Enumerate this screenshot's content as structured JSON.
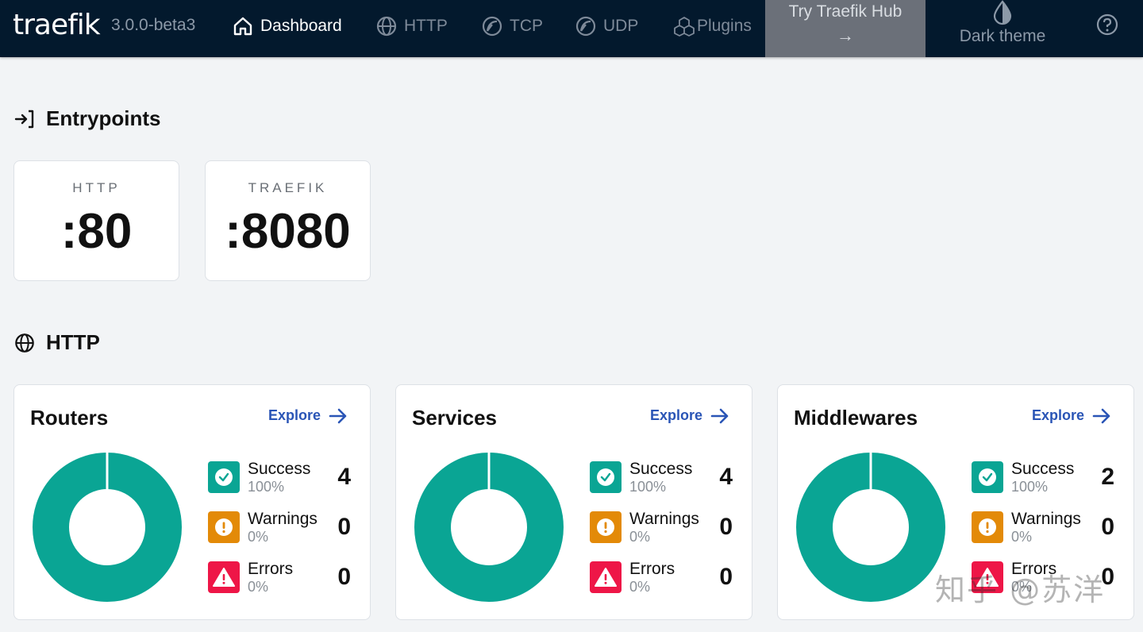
{
  "nav": {
    "logo": "traefik",
    "version": "3.0.0-beta3",
    "items": [
      {
        "label": "Dashboard",
        "icon": "home-icon",
        "active": true
      },
      {
        "label": "HTTP",
        "icon": "globe-icon",
        "active": false
      },
      {
        "label": "TCP",
        "icon": "tcp-icon",
        "active": false
      },
      {
        "label": "UDP",
        "icon": "udp-icon",
        "active": false
      },
      {
        "label": "Plugins",
        "icon": "plugins-icon",
        "active": false
      }
    ],
    "hub_button": {
      "line1": "Try Traefik Hub",
      "line2": "→"
    },
    "dark_theme": "Dark theme",
    "help_icon": "help-icon"
  },
  "entrypoints": {
    "title": "Entrypoints",
    "cards": [
      {
        "name": "HTTP",
        "port": ":80"
      },
      {
        "name": "TRAEFIK",
        "port": ":8080"
      }
    ]
  },
  "http": {
    "title": "HTTP",
    "explore_label": "Explore",
    "cards": [
      {
        "title": "Routers",
        "legend": [
          {
            "label": "Success",
            "pct": "100%",
            "count": "4"
          },
          {
            "label": "Warnings",
            "pct": "0%",
            "count": "0"
          },
          {
            "label": "Errors",
            "pct": "0%",
            "count": "0"
          }
        ]
      },
      {
        "title": "Services",
        "legend": [
          {
            "label": "Success",
            "pct": "100%",
            "count": "4"
          },
          {
            "label": "Warnings",
            "pct": "0%",
            "count": "0"
          },
          {
            "label": "Errors",
            "pct": "0%",
            "count": "0"
          }
        ]
      },
      {
        "title": "Middlewares",
        "legend": [
          {
            "label": "Success",
            "pct": "100%",
            "count": "2"
          },
          {
            "label": "Warnings",
            "pct": "0%",
            "count": "0"
          },
          {
            "label": "Errors",
            "pct": "0%",
            "count": "0"
          }
        ]
      }
    ]
  },
  "colors": {
    "nav_bg": "#03192d",
    "success": "#0aa594",
    "warning": "#e38a08",
    "error": "#ee1647",
    "link": "#2a55b6"
  },
  "watermark": "知乎 @苏洋"
}
